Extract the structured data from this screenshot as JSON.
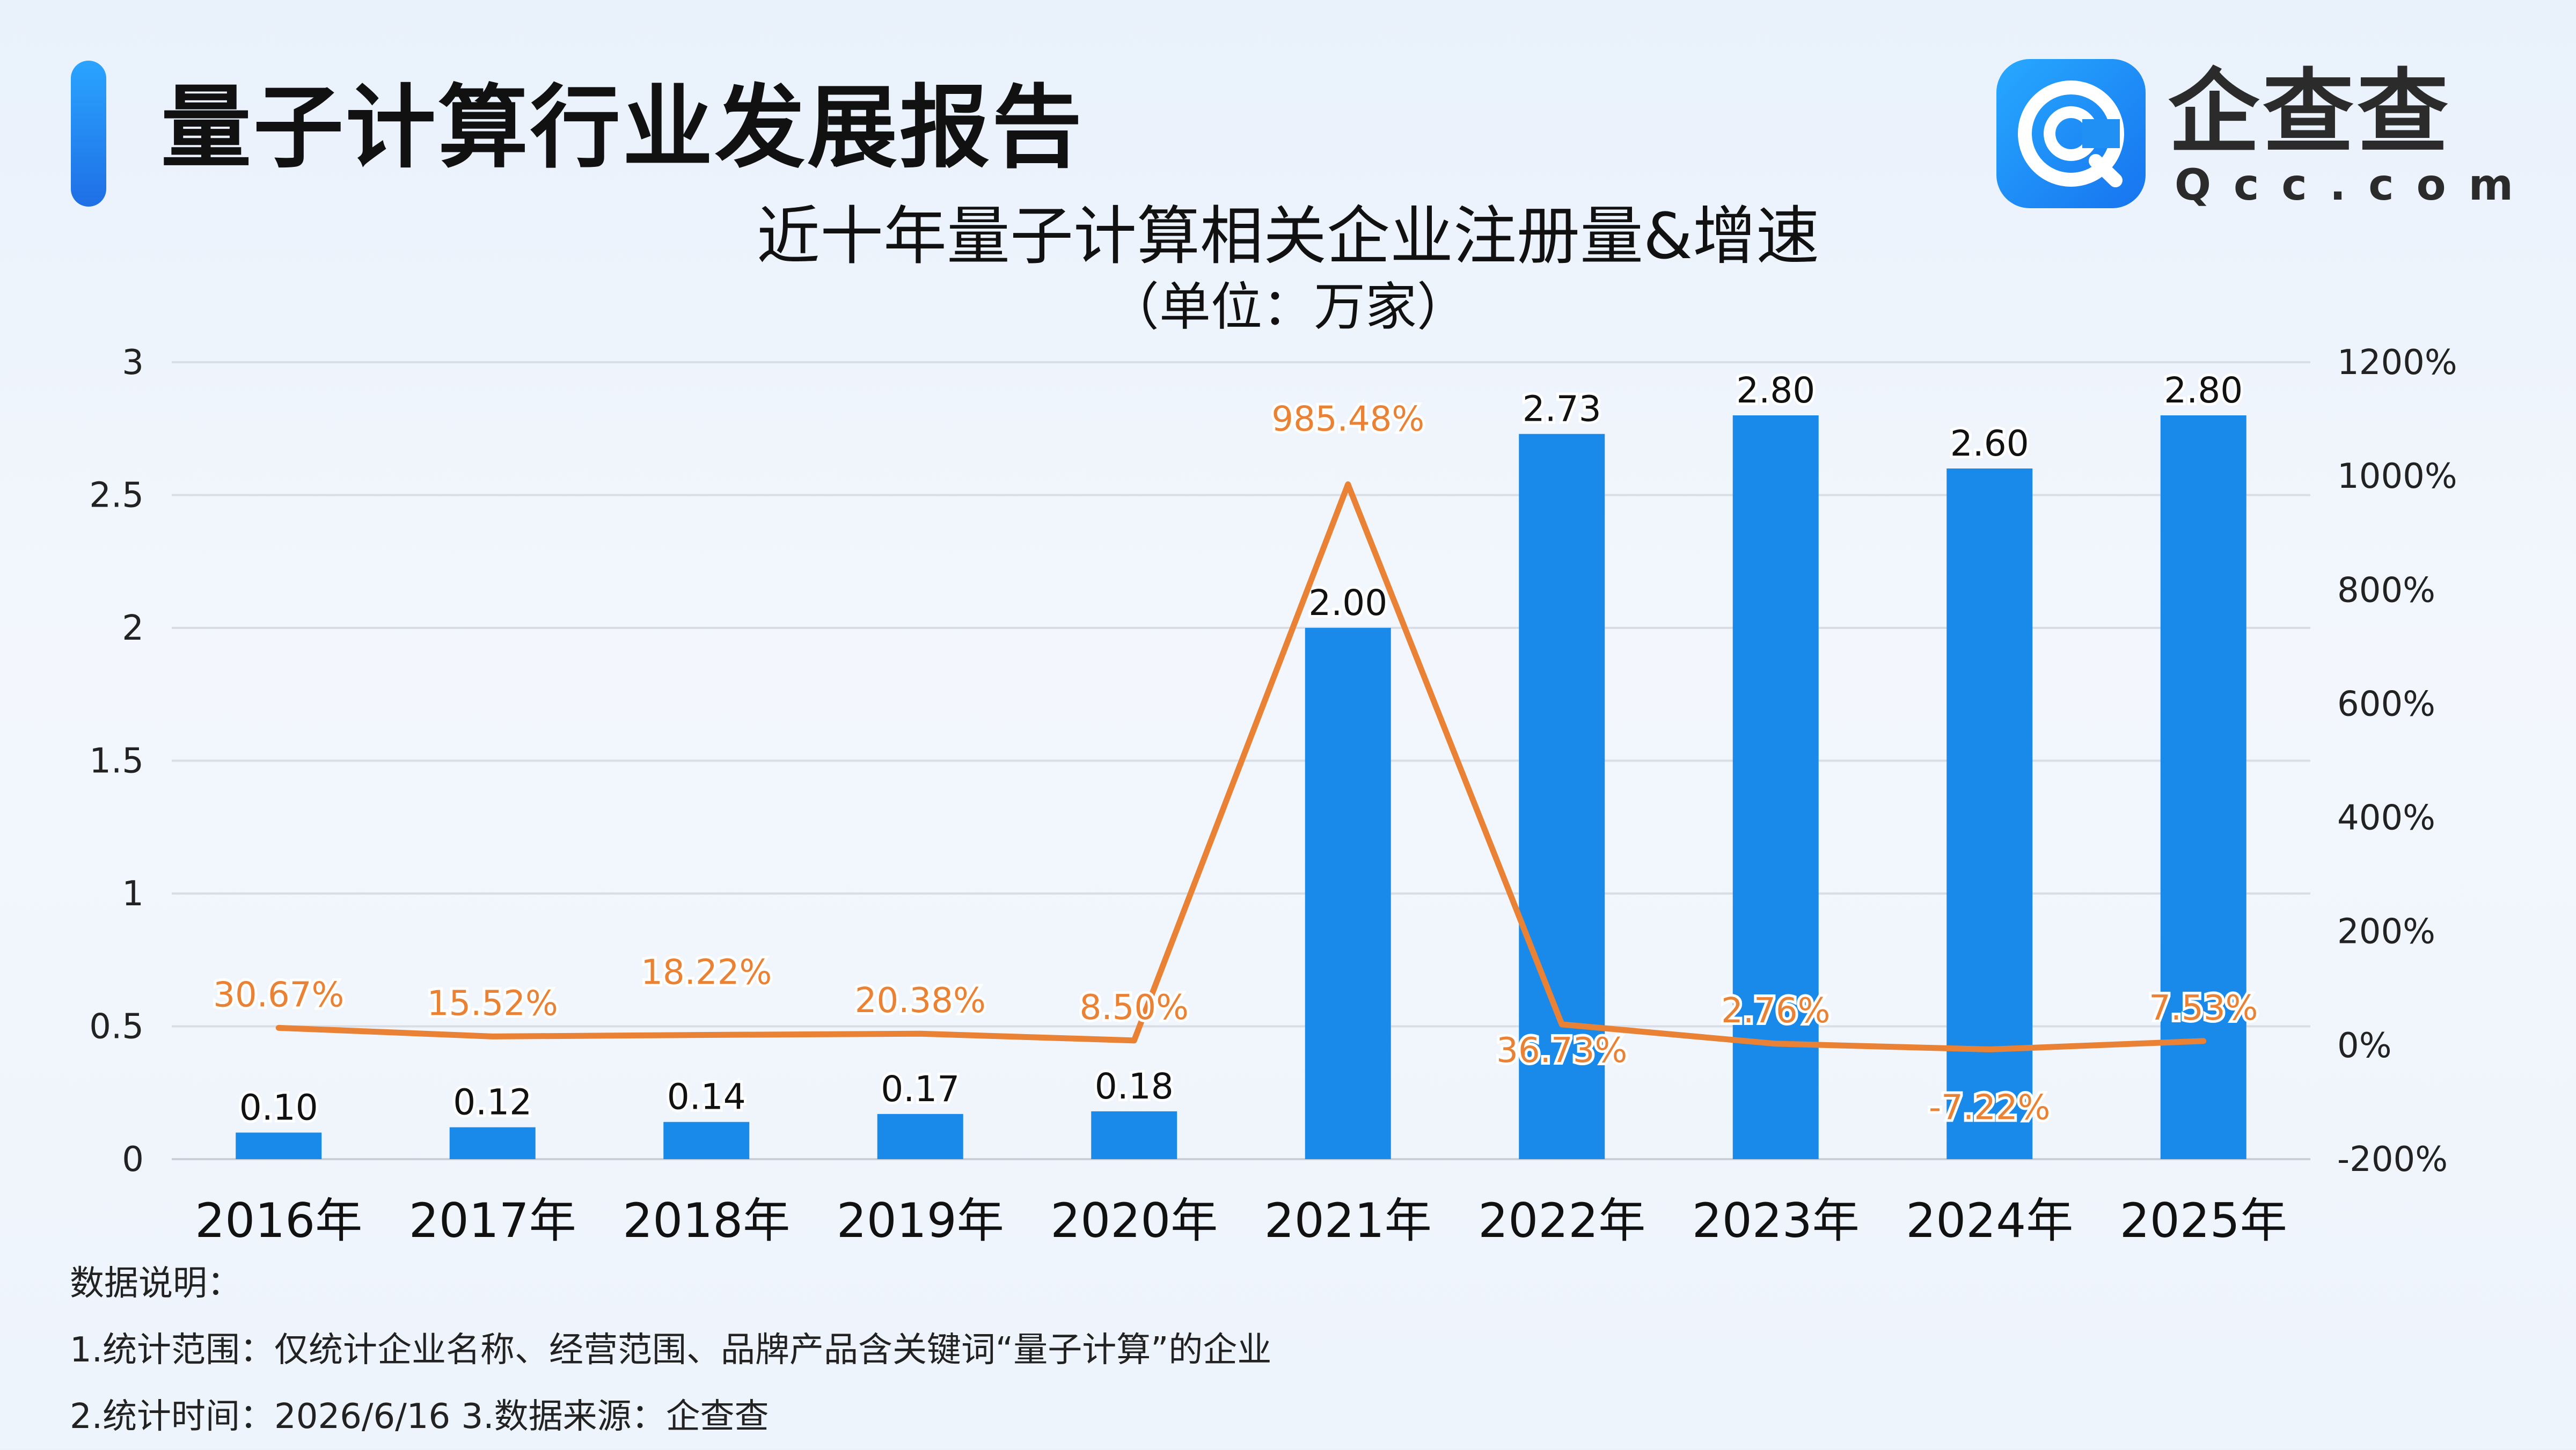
{
  "header": {
    "title": "量子计算行业发展报告"
  },
  "logo": {
    "name": "企查查",
    "domain": "Qcc.com"
  },
  "chart_data": {
    "type": "bar",
    "title": "近十年量子计算相关企业注册量&增速",
    "subtitle": "（单位：万家）",
    "categories": [
      "2016年",
      "2017年",
      "2018年",
      "2019年",
      "2020年",
      "2021年",
      "2022年",
      "2023年",
      "2024年",
      "2025年"
    ],
    "series": [
      {
        "type": "bar",
        "axis": "left",
        "values": [
          0.1,
          0.12,
          0.14,
          0.17,
          0.18,
          2.0,
          2.73,
          2.8,
          2.6,
          2.8
        ],
        "labels": [
          "0.10",
          "0.12",
          "0.14",
          "0.17",
          "0.18",
          "2.00",
          "2.73",
          "2.80",
          "2.60",
          "2.80"
        ],
        "color": "#1a8aea"
      },
      {
        "type": "line",
        "axis": "right",
        "values": [
          30.67,
          15.52,
          18.22,
          20.38,
          8.5,
          985.48,
          36.73,
          2.76,
          -7.22,
          7.53
        ],
        "labels": [
          "30.67%",
          "15.52%",
          "18.22%",
          "20.38%",
          "8.50%",
          "985.48%",
          "36.73%",
          "2.76%",
          "-7.22%",
          "7.53%"
        ],
        "color": "#e98234"
      }
    ],
    "y_left": {
      "lim": [
        0,
        3
      ],
      "ticks": [
        0,
        0.5,
        1,
        1.5,
        2,
        2.5,
        3
      ],
      "tick_labels": [
        "0",
        "0.5",
        "1",
        "1.5",
        "2",
        "2.5",
        "3"
      ]
    },
    "y_right": {
      "lim": [
        -200,
        1200
      ],
      "ticks": [
        -200,
        0,
        200,
        400,
        600,
        800,
        1000,
        1200
      ],
      "tick_labels": [
        "-200%",
        "0%",
        "200%",
        "400%",
        "600%",
        "800%",
        "1000%",
        "1200%"
      ]
    },
    "grid": true,
    "legend": "none"
  },
  "notes": {
    "heading": "数据说明：",
    "line1": "1.统计范围：仅统计企业名称、经营范围、品牌产品含关键词“量子计算”的企业",
    "line2": "2.统计时间：2026/6/16  3.数据来源：企查查"
  }
}
